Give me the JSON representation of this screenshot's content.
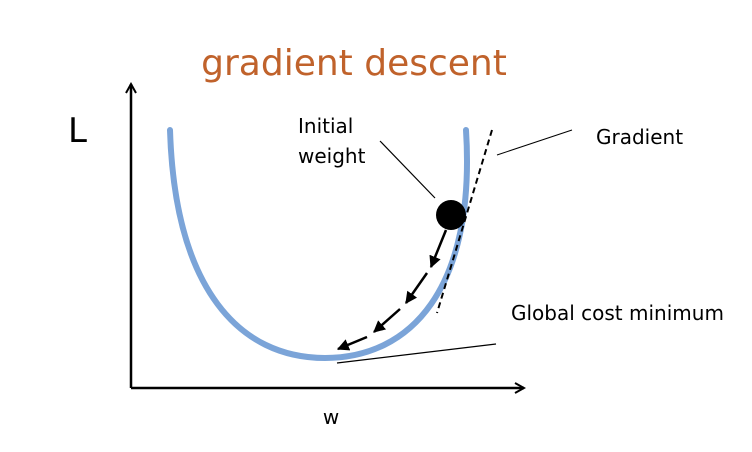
{
  "title": "gradient descent",
  "y_axis_label": "L",
  "x_axis_label": "w",
  "labels": {
    "initial_weight_line1": "Initial",
    "initial_weight_line2": "weight",
    "gradient": "Gradient",
    "global_cost_minimum": "Global cost minimum"
  },
  "colors": {
    "title": "#C0622B",
    "curve": "#7BA4D8",
    "axes": "#000000",
    "ball": "#000000"
  }
}
